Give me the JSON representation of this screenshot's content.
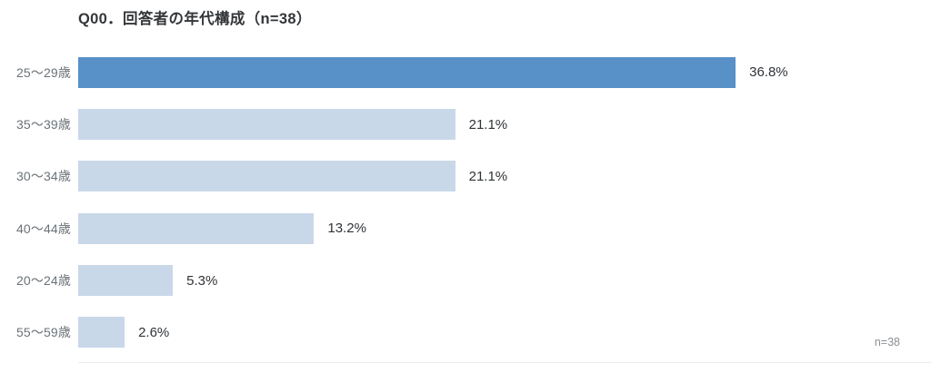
{
  "chart_data": {
    "type": "bar",
    "orientation": "horizontal",
    "title": "Q00．回答者の年代構成（n=38）",
    "categories": [
      "25～29歳",
      "35～39歳",
      "30～34歳",
      "40～44歳",
      "20～24歳",
      "55～59歳"
    ],
    "values": [
      36.8,
      21.1,
      21.1,
      13.2,
      5.3,
      2.6
    ],
    "value_labels": [
      "36.8%",
      "21.1%",
      "21.1%",
      "13.2%",
      "5.3%",
      "2.6%"
    ],
    "sample_note": "n=38",
    "xlim": [
      0,
      40
    ],
    "grid": false,
    "legend": false,
    "highlight_index": 0,
    "colors": {
      "highlight_bar": "#5890C8",
      "default_bar": "#C9D8E8",
      "title_text": "#333639",
      "category_text": "#6b7277",
      "value_text": "#2f3337",
      "footnote_text": "#8a9096",
      "baseline": "#e9edf3"
    }
  }
}
